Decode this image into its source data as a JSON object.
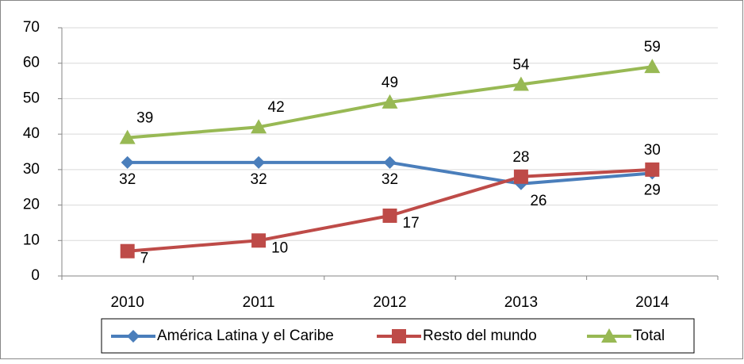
{
  "chart_data": {
    "type": "line",
    "categories": [
      "2010",
      "2011",
      "2012",
      "2013",
      "2014"
    ],
    "series": [
      {
        "name": "América Latina y el Caribe",
        "color": "#4a7ebb",
        "marker": "diamond",
        "values": [
          32,
          32,
          32,
          26,
          29
        ]
      },
      {
        "name": "Resto del mundo",
        "color": "#be4b48",
        "marker": "square",
        "values": [
          7,
          10,
          17,
          28,
          30
        ]
      },
      {
        "name": "Total",
        "color": "#98b954",
        "marker": "triangle",
        "values": [
          39,
          42,
          49,
          54,
          59
        ]
      }
    ],
    "ylim": [
      0,
      70
    ],
    "yticks": [
      0,
      10,
      20,
      30,
      40,
      50,
      60,
      70
    ],
    "grid": true,
    "legend": "bottom"
  }
}
